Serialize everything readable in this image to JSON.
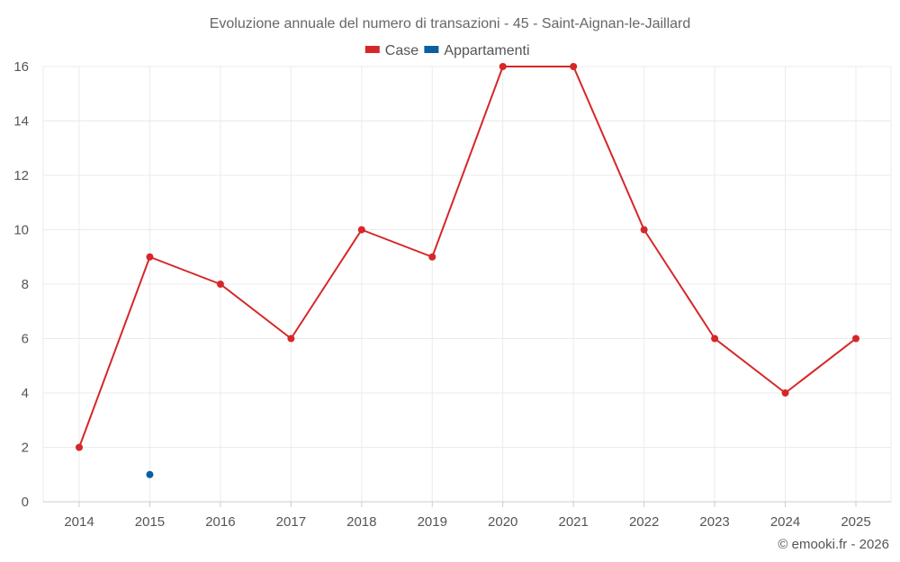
{
  "chart_data": {
    "type": "line",
    "title": "Evoluzione annuale del numero di transazioni - 45 - Saint-Aignan-le-Jaillard",
    "categories": [
      "2014",
      "2015",
      "2016",
      "2017",
      "2018",
      "2019",
      "2020",
      "2021",
      "2022",
      "2023",
      "2024",
      "2025"
    ],
    "series": [
      {
        "name": "Case",
        "color": "#d62728",
        "values": [
          2,
          9,
          8,
          6,
          10,
          9,
          16,
          16,
          10,
          6,
          4,
          6
        ]
      },
      {
        "name": "Appartamenti",
        "color": "#0b5fa0",
        "values": [
          null,
          1,
          null,
          null,
          null,
          null,
          null,
          null,
          null,
          null,
          null,
          null
        ]
      }
    ],
    "ylim": [
      0,
      16
    ],
    "yticks": [
      0,
      2,
      4,
      6,
      8,
      10,
      12,
      14,
      16
    ],
    "xlabel": "",
    "ylabel": "",
    "grid": true,
    "legend": "top-center"
  },
  "credit": "© emooki.fr - 2026"
}
